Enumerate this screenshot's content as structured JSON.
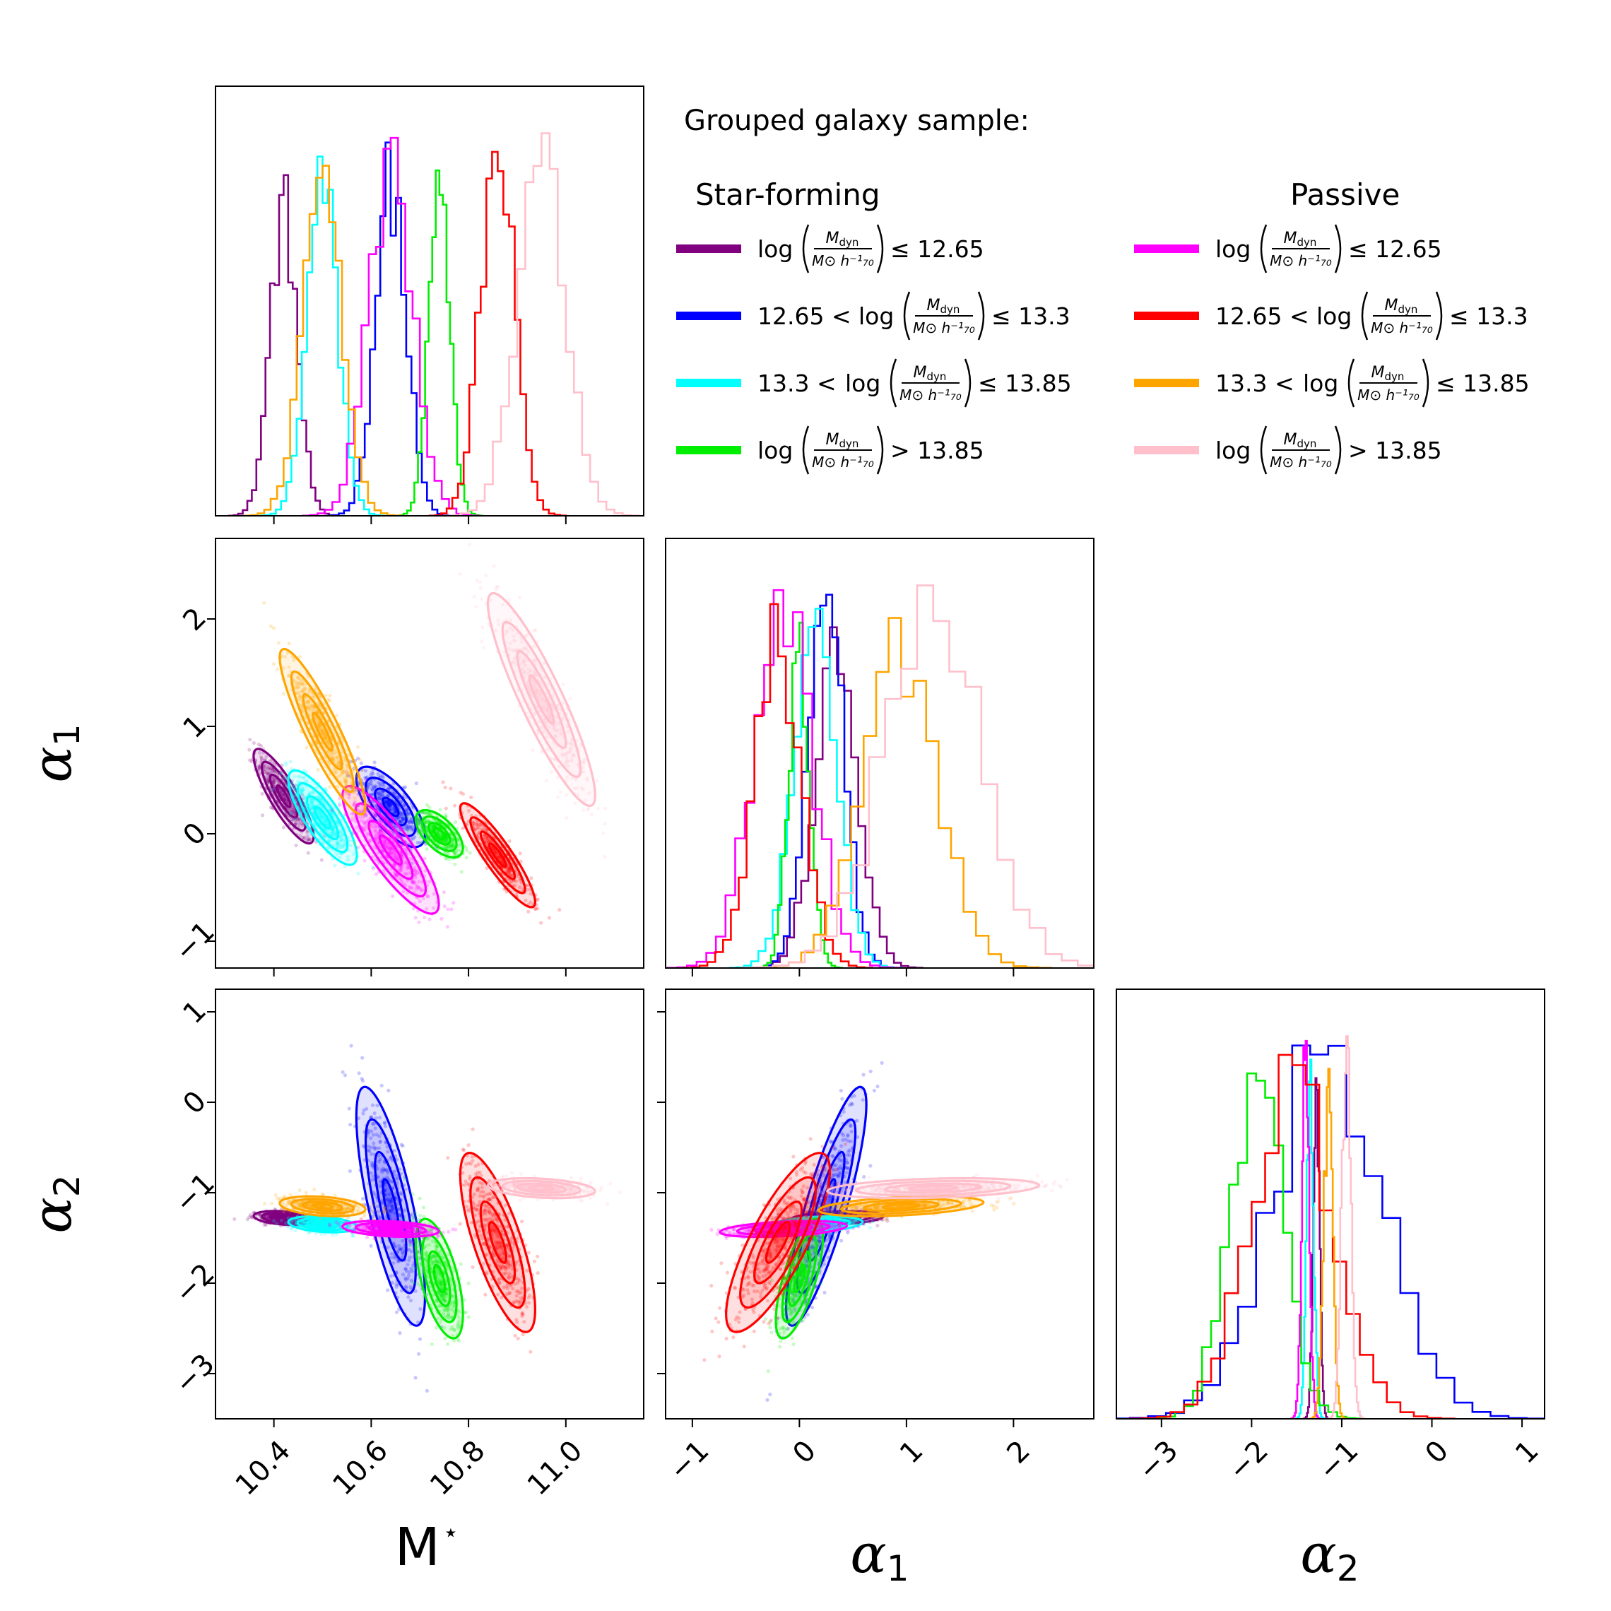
{
  "chart_data": {
    "type": "corner",
    "title": "Grouped galaxy sample:",
    "parameters": [
      "M*",
      "α1",
      "α2"
    ],
    "axis_labels": {
      "mstar": "M",
      "mstar_sup": "⋆",
      "alpha1": "α",
      "alpha1_sub": "1",
      "alpha2": "α",
      "alpha2_sub": "2"
    },
    "ranges": {
      "mstar": [
        10.28,
        11.16
      ],
      "alpha1": [
        -1.25,
        2.75
      ],
      "alpha2": [
        -3.5,
        1.25
      ]
    },
    "ticks": {
      "mstar": [
        10.4,
        10.6,
        10.8,
        11.0
      ],
      "mstar_labels": [
        "10.4",
        "10.6",
        "10.8",
        "11.0"
      ],
      "alpha1": [
        -1,
        0,
        1,
        2
      ],
      "alpha1_labels": [
        "−1",
        "0",
        "1",
        "2"
      ],
      "alpha2": [
        -3,
        -2,
        -1,
        0,
        1
      ],
      "alpha2_labels": [
        "−3",
        "−2",
        "−1",
        "0",
        "1"
      ]
    },
    "legend": {
      "col_headers": [
        "Star-forming",
        "Passive"
      ],
      "entries": [
        {
          "group": "Star-forming",
          "pre": "",
          "post": "≤ 12.65"
        },
        {
          "group": "Star-forming",
          "pre": "12.65 <",
          "post": "≤ 13.3"
        },
        {
          "group": "Star-forming",
          "pre": "13.3 <",
          "post": "≤ 13.85"
        },
        {
          "group": "Star-forming",
          "pre": "",
          "post": "> 13.85"
        },
        {
          "group": "Passive",
          "pre": "",
          "post": "≤ 12.65"
        },
        {
          "group": "Passive",
          "pre": "12.65 <",
          "post": "≤ 13.3"
        },
        {
          "group": "Passive",
          "pre": "13.3 <",
          "post": "≤ 13.85"
        },
        {
          "group": "Passive",
          "pre": "",
          "post": "> 13.85"
        }
      ],
      "expr": {
        "log": "log",
        "num_main": "M",
        "num_sub": "dyn",
        "den": "M⊙ h⁻¹₇₀"
      }
    },
    "series": [
      {
        "name": "SF log(Mdyn) ≤ 12.65",
        "color": "#800080",
        "mstar": {
          "mean": 10.42,
          "sd": 0.028
        },
        "alpha1": {
          "mean": 0.35,
          "sd": 0.2
        },
        "alpha2": {
          "mean": -1.28,
          "sd": 0.035
        },
        "rho12": -0.85,
        "rho13": -0.3,
        "rho23": 0.3
      },
      {
        "name": "SF 12.65 < log(Mdyn) ≤ 13.3",
        "color": "#0000ff",
        "mstar": {
          "mean": 10.64,
          "sd": 0.032
        },
        "alpha1": {
          "mean": 0.25,
          "sd": 0.17
        },
        "alpha2": {
          "mean": -1.15,
          "sd": 0.6
        },
        "rho12": -0.7,
        "rho13": -0.75,
        "rho23": 0.85
      },
      {
        "name": "SF 13.3 < log(Mdyn) ≤ 13.85",
        "color": "#00ffff",
        "mstar": {
          "mean": 10.5,
          "sd": 0.032
        },
        "alpha1": {
          "mean": 0.15,
          "sd": 0.2
        },
        "alpha2": {
          "mean": -1.35,
          "sd": 0.04
        },
        "rho12": -0.8,
        "rho13": -0.3,
        "rho23": 0.3
      },
      {
        "name": "SF log(Mdyn) > 13.85",
        "color": "#00ee00",
        "mstar": {
          "mean": 10.74,
          "sd": 0.022
        },
        "alpha1": {
          "mean": 0.0,
          "sd": 0.1
        },
        "alpha2": {
          "mean": -1.95,
          "sd": 0.3
        },
        "rho12": -0.6,
        "rho13": -0.6,
        "rho23": 0.7
      },
      {
        "name": "P log(Mdyn) ≤ 12.65",
        "color": "#ff00ff",
        "mstar": {
          "mean": 10.64,
          "sd": 0.045
        },
        "alpha1": {
          "mean": -0.15,
          "sd": 0.27
        },
        "alpha2": {
          "mean": -1.4,
          "sd": 0.04
        },
        "rho12": -0.85,
        "rho13": -0.3,
        "rho23": 0.4
      },
      {
        "name": "P 12.65 < log(Mdyn) ≤ 13.3",
        "color": "#ff0000",
        "mstar": {
          "mean": 10.86,
          "sd": 0.035
        },
        "alpha1": {
          "mean": -0.2,
          "sd": 0.22
        },
        "alpha2": {
          "mean": -1.55,
          "sd": 0.45
        },
        "rho12": -0.9,
        "rho13": -0.75,
        "rho23": 0.8
      },
      {
        "name": "P 13.3 < log(Mdyn) ≤ 13.85",
        "color": "#ffa500",
        "mstar": {
          "mean": 10.5,
          "sd": 0.04
        },
        "alpha1": {
          "mean": 0.95,
          "sd": 0.35
        },
        "alpha2": {
          "mean": -1.15,
          "sd": 0.05
        },
        "rho12": -0.9,
        "rho13": -0.3,
        "rho23": 0.4
      },
      {
        "name": "P log(Mdyn) > 13.85",
        "color": "#ffc0cb",
        "mstar": {
          "mean": 10.95,
          "sd": 0.05
        },
        "alpha1": {
          "mean": 1.25,
          "sd": 0.45
        },
        "alpha2": {
          "mean": -0.95,
          "sd": 0.05
        },
        "rho12": -0.9,
        "rho13": -0.3,
        "rho23": 0.3
      }
    ]
  }
}
